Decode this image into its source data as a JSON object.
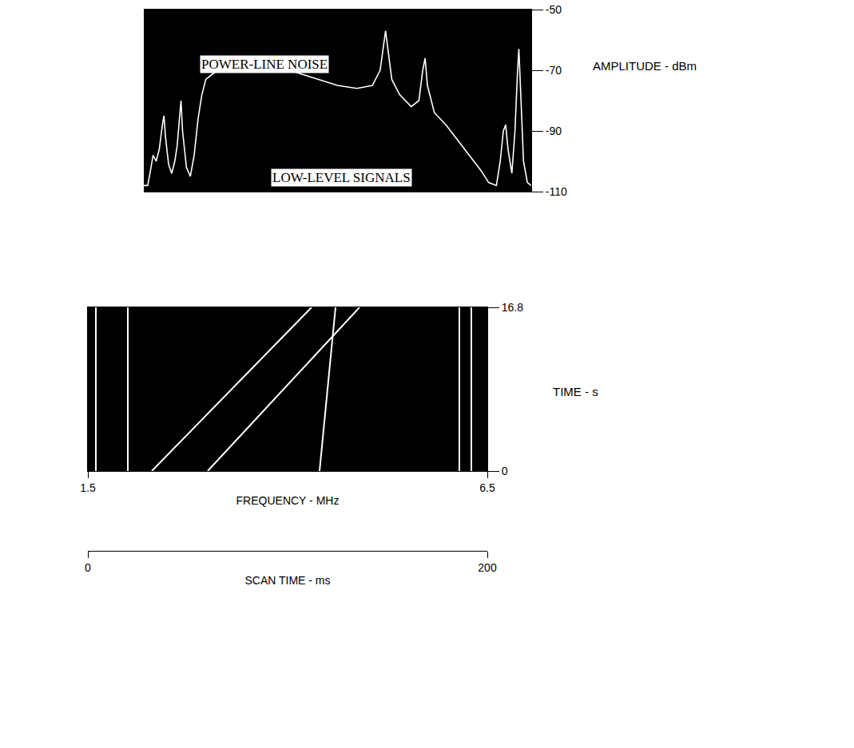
{
  "chart_data": [
    {
      "type": "line",
      "annotations": [
        "POWER-LINE NOISE",
        "LOW-LEVEL SIGNALS"
      ],
      "y_label": "AMPLITUDE - dBm",
      "color": "#ffffff",
      "x": [
        1.5,
        1.55,
        1.58,
        1.62,
        1.66,
        1.7,
        1.74,
        1.76,
        1.78,
        1.82,
        1.86,
        1.9,
        1.93,
        1.96,
        1.98,
        2.0,
        2.05,
        2.1,
        2.15,
        2.2,
        2.25,
        2.3,
        2.4,
        2.55,
        2.75,
        3.0,
        3.25,
        3.5,
        3.75,
        4.0,
        4.25,
        4.45,
        4.55,
        4.6,
        4.62,
        4.65,
        4.7,
        4.8,
        4.95,
        5.05,
        5.1,
        5.13,
        5.16,
        5.25,
        5.4,
        5.55,
        5.7,
        5.85,
        5.95,
        6.05,
        6.1,
        6.14,
        6.17,
        6.2,
        6.25,
        6.29,
        6.32,
        6.34,
        6.36,
        6.4,
        6.45,
        6.5
      ],
      "values": [
        -108,
        -108,
        -104,
        -98,
        -100,
        -96,
        -88,
        -85,
        -92,
        -101,
        -104,
        -100,
        -95,
        -86,
        -80,
        -90,
        -102,
        -105,
        -98,
        -86,
        -78,
        -73,
        -71,
        -69,
        -68,
        -68,
        -69,
        -71,
        -73,
        -75,
        -76,
        -75,
        -70,
        -60,
        -57,
        -63,
        -73,
        -78,
        -82,
        -80,
        -70,
        -66,
        -75,
        -84,
        -88,
        -93,
        -98,
        -103,
        -107,
        -108,
        -100,
        -90,
        -88,
        -96,
        -104,
        -90,
        -72,
        -63,
        -75,
        -100,
        -107,
        -108
      ],
      "xlim": [
        1.5,
        6.5
      ],
      "ylim": [
        -110,
        -50
      ],
      "yticks": [
        -50,
        -70,
        -90,
        -110
      ],
      "tick_labels": "y"
    },
    {
      "type": "line",
      "x_label": "FREQUENCY - MHz",
      "x2_label": "SCAN TIME - ms",
      "y_label": "TIME - s",
      "xlim": [
        1.5,
        6.5
      ],
      "xticks": [
        1.5,
        6.5
      ],
      "x2lim": [
        0,
        200
      ],
      "x2ticks": [
        0,
        200
      ],
      "ylim": [
        0,
        16.8
      ],
      "yticks": [
        0,
        16.8
      ],
      "series": [
        {
          "color": "#ffffff",
          "x": [
            1.6,
            1.6
          ],
          "values": [
            0,
            16.8
          ]
        },
        {
          "color": "#ffffff",
          "x": [
            2.0,
            2.0
          ],
          "values": [
            0,
            16.8
          ]
        },
        {
          "color": "#ffffff",
          "x": [
            2.3,
            4.3
          ],
          "values": [
            0,
            16.8
          ]
        },
        {
          "color": "#ffffff",
          "x": [
            3.0,
            4.9
          ],
          "values": [
            0,
            16.8
          ]
        },
        {
          "color": "#ffffff",
          "x": [
            4.4,
            4.6
          ],
          "values": [
            0,
            16.8
          ]
        },
        {
          "color": "#ffffff",
          "x": [
            6.15,
            6.15
          ],
          "values": [
            0,
            16.8
          ]
        },
        {
          "color": "#ffffff",
          "x": [
            6.3,
            6.3
          ],
          "values": [
            0,
            16.8
          ]
        }
      ]
    }
  ]
}
